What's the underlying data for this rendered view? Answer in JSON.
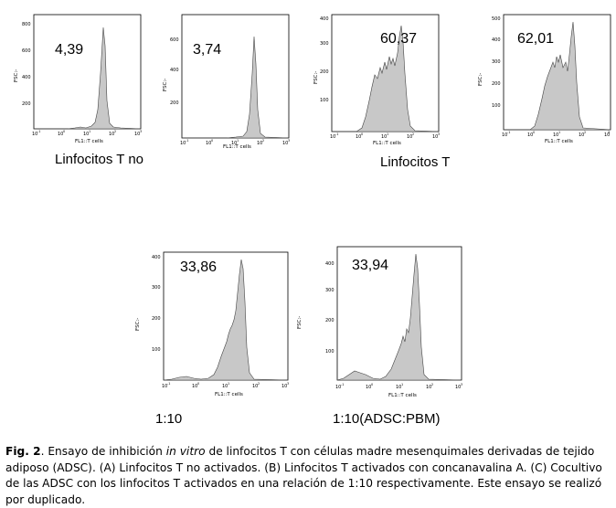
{
  "panels": [
    {
      "id": "p1",
      "value": "4,39",
      "x_label": "FL1::T cells",
      "y_label": "FSC:-",
      "y_ticks": [
        "200",
        "400",
        "600",
        "800"
      ],
      "x_ticks": [
        "10",
        "10",
        "10",
        "10",
        "10"
      ],
      "x_exps": [
        "-1",
        "0",
        "1",
        "2",
        "3"
      ]
    },
    {
      "id": "p2",
      "value": "3,74",
      "x_label": "FL1::T cells",
      "y_label": "FSC:-",
      "y_ticks": [
        "200",
        "400",
        "600"
      ],
      "x_ticks": [
        "10",
        "10",
        "10",
        "10",
        "10"
      ],
      "x_exps": [
        "-1",
        "0",
        "1",
        "2",
        "3"
      ]
    },
    {
      "id": "p3",
      "value": "60,37",
      "x_label": "FL1::T cells",
      "y_label": "FSC:-",
      "y_ticks": [
        "100",
        "200",
        "300",
        "400"
      ],
      "x_ticks": [
        "10",
        "10",
        "10",
        "10",
        "10"
      ],
      "x_exps": [
        "-1",
        "0",
        "1",
        "2",
        "3"
      ]
    },
    {
      "id": "p4",
      "value": "62,01",
      "x_label": "FL1::T cells",
      "y_label": "FSC:-",
      "y_ticks": [
        "100",
        "200",
        "300",
        "400",
        "500"
      ],
      "x_ticks": [
        "10",
        "10",
        "10",
        "10",
        "10"
      ],
      "x_exps": [
        "-1",
        "0",
        "1",
        "2",
        "3"
      ]
    },
    {
      "id": "p5",
      "value": "33,86",
      "x_label": "FL1::T cells",
      "y_label": "FSC:-",
      "y_ticks": [
        "100",
        "200",
        "300",
        "400"
      ],
      "x_ticks": [
        "10",
        "10",
        "10",
        "10",
        "10"
      ],
      "x_exps": [
        "-1",
        "0",
        "1",
        "2",
        "3"
      ]
    },
    {
      "id": "p6",
      "value": "33,94",
      "x_label": "FL1::T cells",
      "y_label": "FSC:-",
      "y_ticks": [
        "100",
        "200",
        "300",
        "400"
      ],
      "x_ticks": [
        "10",
        "10",
        "10",
        "10",
        "10"
      ],
      "x_exps": [
        "-1",
        "0",
        "1",
        "2",
        "3"
      ]
    }
  ],
  "group_labels": {
    "no_activated": "Linfocitos T no",
    "activated": "Linfocitos T",
    "ratio_1": "1:10",
    "ratio_2": "1:10(ADSC:PBM)"
  },
  "caption": {
    "fig": "Fig. 2",
    "text_1": ". Ensayo de inhibición ",
    "italic": "in vitro",
    "text_2": " de linfocitos T con células madre mesenquimales derivadas de tejido adiposo (ADSC). (A) Linfocitos T no activados. (B) Linfocitos T activados con concanavalina A. (C) Cocultivo de las ADSC  con los linfocitos T activados en una relación de 1:10 respectivamente. Este ensayo se realizó por duplicado."
  }
}
